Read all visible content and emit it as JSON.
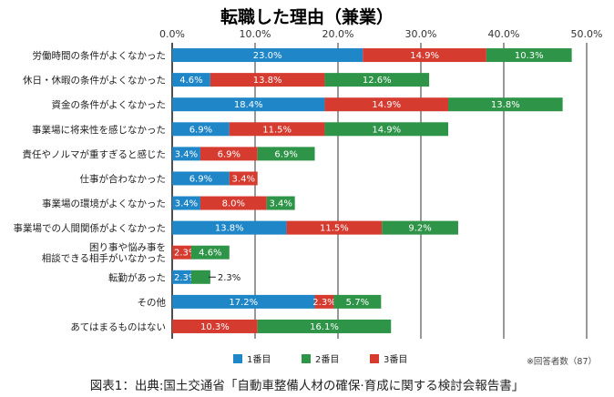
{
  "chart_data": {
    "type": "bar",
    "orientation": "horizontal",
    "stacked": true,
    "title": "転職した理由（兼業）",
    "x_ticks": [
      "0.0%",
      "10.0%",
      "20.0%",
      "30.0%",
      "40.0%",
      "50.0%"
    ],
    "xlim": [
      0,
      50
    ],
    "grid": true,
    "legend_position": "bottom",
    "categories": [
      [
        "労働時間の条件がよくなかった"
      ],
      [
        "休日・休暇の条件がよくなかった"
      ],
      [
        "資金の条件がよくなかった"
      ],
      [
        "事業場に将来性を感じなかった"
      ],
      [
        "責任やノルマが重すぎると感じた"
      ],
      [
        "仕事が合わなかった"
      ],
      [
        "事業場の環境がよくなかった"
      ],
      [
        "事業場での人間関係がよくなかった"
      ],
      [
        "困り事や悩み事を",
        "相談できる相手がいなかった"
      ],
      [
        "転勤があった"
      ],
      [
        "その他"
      ],
      [
        "あてはまるものはない"
      ]
    ],
    "series": [
      {
        "name": "1番目",
        "color": "#1f86c8",
        "values": [
          23.0,
          4.6,
          18.4,
          6.9,
          3.4,
          6.9,
          3.4,
          13.8,
          0,
          2.3,
          17.2,
          0
        ],
        "labels": [
          "23.0%",
          "4.6%",
          "18.4%",
          "6.9%",
          "3.4%",
          "6.9%",
          "3.4%",
          "13.8%",
          "",
          "2.3%",
          "17.2%",
          ""
        ]
      },
      {
        "name": "3番目",
        "color": "#d63b30",
        "values": [
          14.9,
          13.8,
          14.9,
          11.5,
          6.9,
          3.4,
          8.0,
          11.5,
          2.3,
          0,
          2.3,
          10.3
        ],
        "labels": [
          "14.9%",
          "13.8%",
          "14.9%",
          "11.5%",
          "6.9%",
          "3.4%",
          "8.0%",
          "11.5%",
          "2.3%",
          "",
          "2.3%",
          "10.3%"
        ]
      },
      {
        "name": "2番目",
        "color": "#2e9448",
        "values": [
          10.3,
          12.6,
          13.8,
          14.9,
          6.9,
          0,
          3.4,
          9.2,
          4.6,
          2.3,
          5.7,
          16.1
        ],
        "labels": [
          "10.3%",
          "12.6%",
          "13.8%",
          "14.9%",
          "6.9%",
          "",
          "3.4%",
          "9.2%",
          "4.6%",
          "2.3%",
          "5.7%",
          "16.1%"
        ]
      }
    ],
    "legend": [
      {
        "name": "1番目",
        "color": "#1f86c8"
      },
      {
        "name": "2番目",
        "color": "#2e9448"
      },
      {
        "name": "3番目",
        "color": "#d63b30"
      }
    ],
    "note": "※回答者数（87）"
  },
  "caption": "図表1：出典:国土交通省「自動車整備人材の確保·育成に関する検討会報告書」"
}
